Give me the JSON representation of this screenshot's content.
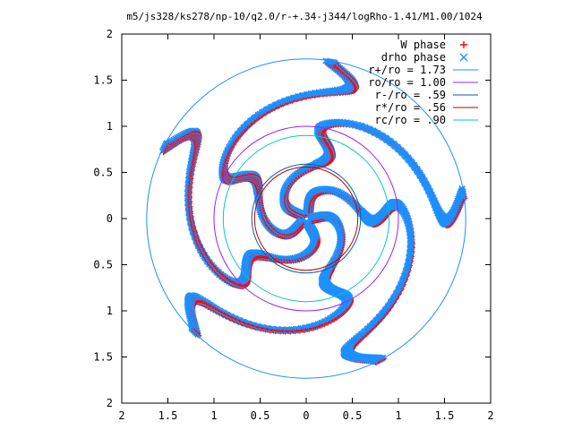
{
  "chart_data": {
    "type": "scatter",
    "title": "m5/js328/ks278/np-10/q2.0/r-+.34-j344/logRho-1.41/M1.00/1024",
    "xlabel": "",
    "ylabel": "",
    "xlim": [
      -2,
      2
    ],
    "ylim": [
      -2,
      2
    ],
    "x_ticks": [
      "2",
      "1.5",
      "1",
      "0.5",
      "0",
      "0.5",
      "1",
      "1.5",
      "2"
    ],
    "y_ticks": [
      "2",
      "1.5",
      "1",
      "0.5",
      "0",
      "0.5",
      "1",
      "1.5",
      "2"
    ],
    "grid": false,
    "legend_position": "top-right",
    "series": [
      {
        "name": "W phase",
        "marker": "plus",
        "color": "#ff0000"
      },
      {
        "name": "drho phase",
        "marker": "cross",
        "color": "#1e90ff"
      }
    ],
    "circles": [
      {
        "name": "r+/ro = 1.73",
        "radius": 1.73,
        "color": "#1e90ff"
      },
      {
        "name": "ro/ro = 1.00",
        "radius": 1.0,
        "color": "#a020f0"
      },
      {
        "name": "r-/ro = .59",
        "radius": 0.59,
        "color": "#0060ad"
      },
      {
        "name": "r*/ro = .56",
        "radius": 0.56,
        "color": "#c00000"
      },
      {
        "name": "rc/ro = .90",
        "radius": 0.9,
        "color": "#00c8c8"
      }
    ],
    "spiral_model": {
      "arms": 5,
      "inner_radius": 0.05,
      "outer_radius": 1.72
    }
  }
}
